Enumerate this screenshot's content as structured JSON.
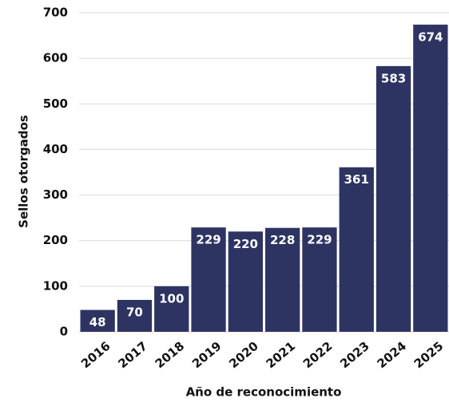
{
  "chart_data": {
    "type": "bar",
    "x_label": "Año de reconocimiento",
    "y_label": "Sellos otorgados",
    "categories": [
      "2016",
      "2017",
      "2018",
      "2019",
      "2020",
      "2021",
      "2022",
      "2023",
      "2024",
      "2025"
    ],
    "values": [
      48,
      70,
      100,
      229,
      220,
      228,
      229,
      361,
      583,
      674
    ],
    "color": "#2e3462",
    "ylim": [
      0,
      700
    ],
    "yticks": [
      0,
      100,
      200,
      300,
      400,
      500,
      600,
      700
    ],
    "grid": true
  }
}
